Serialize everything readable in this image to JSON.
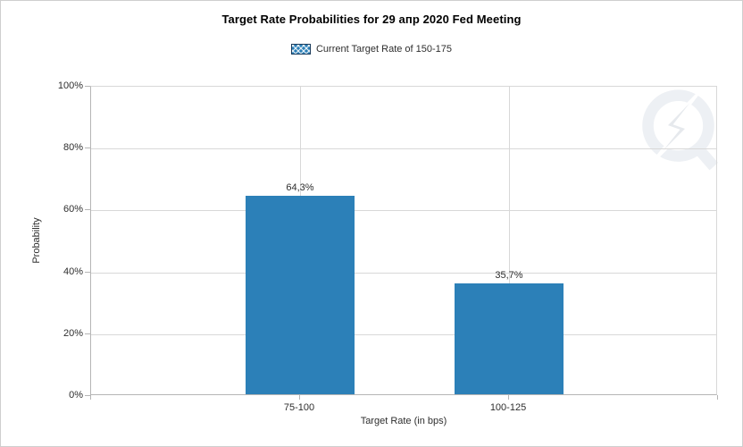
{
  "chart_data": {
    "type": "bar",
    "title": "Target Rate Probabilities for 29 апр 2020 Fed Meeting",
    "categories": [
      "75-100",
      "100-125"
    ],
    "values": [
      64.3,
      35.7
    ],
    "value_labels": [
      "64,3%",
      "35,7%"
    ],
    "xlabel": "Target Rate (in bps)",
    "ylabel": "Probability",
    "ylim": [
      0,
      100
    ],
    "y_ticks": [
      0,
      20,
      40,
      60,
      80,
      100
    ],
    "y_tick_labels": [
      "0%",
      "20%",
      "40%",
      "60%",
      "80%",
      "100%"
    ],
    "legend": [
      "Current Target Rate of 150-175"
    ],
    "legend_position": "top-center",
    "grid": true,
    "colors": {
      "bar": "#2c80b8",
      "gridline": "#d8d8d8",
      "axis": "#b5b5b5",
      "text": "#2e2e2e",
      "title": "#000000",
      "legend_swatch_fill": "#2c80b8",
      "legend_swatch_border": "#1a3a5a",
      "watermark_ring": "#edf0f4",
      "watermark_bolt": "#e6e9ed"
    }
  },
  "watermark": {
    "icon": "q-lightning-logo"
  }
}
